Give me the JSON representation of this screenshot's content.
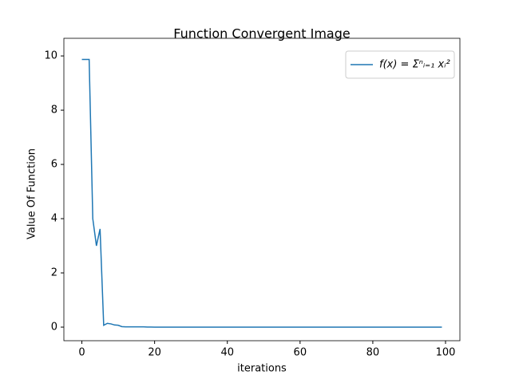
{
  "chart_data": {
    "type": "line",
    "title": "Function Convergent Image",
    "x_label": "iterations",
    "y_label": "Value Of Function",
    "x": [
      0,
      1,
      2,
      3,
      4,
      5,
      6,
      7,
      8,
      9,
      10,
      11,
      12,
      13,
      14,
      15,
      16,
      17,
      18,
      19,
      20,
      21,
      22,
      23,
      24,
      25,
      26,
      27,
      28,
      29,
      30,
      31,
      32,
      33,
      34,
      35,
      36,
      37,
      38,
      39,
      40,
      41,
      42,
      43,
      44,
      45,
      46,
      47,
      48,
      49,
      50,
      51,
      52,
      53,
      54,
      55,
      56,
      57,
      58,
      59,
      60,
      61,
      62,
      63,
      64,
      65,
      66,
      67,
      68,
      69,
      70,
      71,
      72,
      73,
      74,
      75,
      76,
      77,
      78,
      79,
      80,
      81,
      82,
      83,
      84,
      85,
      86,
      87,
      88,
      89,
      90,
      91,
      92,
      93,
      94,
      95,
      96,
      97,
      98,
      99
    ],
    "series": [
      {
        "name": "f(x) = Σⁿᵢ₌₁ xᵢ²",
        "color": "#1f77b4",
        "values": [
          9.87,
          9.87,
          9.87,
          4.0,
          3.0,
          3.62,
          0.07,
          0.14,
          0.12,
          0.08,
          0.07,
          0.02,
          0.01,
          0.01,
          0.01,
          0.01,
          0.01,
          0.01,
          0.005,
          0.005,
          0,
          0,
          0,
          0,
          0,
          0,
          0,
          0,
          0,
          0,
          0,
          0,
          0,
          0,
          0,
          0,
          0,
          0,
          0,
          0,
          0,
          0,
          0,
          0,
          0,
          0,
          0,
          0,
          0,
          0,
          0,
          0,
          0,
          0,
          0,
          0,
          0,
          0,
          0,
          0,
          0,
          0,
          0,
          0,
          0,
          0,
          0,
          0,
          0,
          0,
          0,
          0,
          0,
          0,
          0,
          0,
          0,
          0,
          0,
          0,
          0,
          0,
          0,
          0,
          0,
          0,
          0,
          0,
          0,
          0,
          0,
          0,
          0,
          0,
          0,
          0,
          0,
          0,
          0,
          0
        ]
      }
    ],
    "xlim": [
      -4.95,
      103.95
    ],
    "ylim": [
      -0.5,
      10.65
    ],
    "xticks": [
      0,
      20,
      40,
      60,
      80,
      100
    ],
    "yticks": [
      0,
      2,
      4,
      6,
      8,
      10
    ],
    "legend": "upper right"
  }
}
